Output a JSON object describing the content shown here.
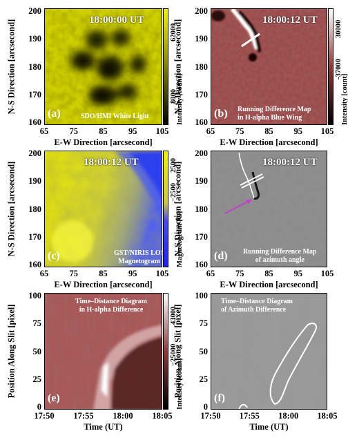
{
  "panels": {
    "a": {
      "letter": "(a)",
      "time": "18:00:00 UT",
      "caption": [
        "SDO/HMI White Light"
      ],
      "colorbar": {
        "max": "62000",
        "min": "8000",
        "label": "Intensity [count]",
        "colors": [
          "#f3f100",
          "#000000"
        ]
      }
    },
    "b": {
      "letter": "(b)",
      "time": "18:00:12 UT",
      "caption": [
        "Running Difference Map",
        "in H-alpha Blue Wing"
      ],
      "colorbar": {
        "max": "30000",
        "min": "-37000",
        "label": "Intensity [count]",
        "colors": [
          "#ffffff",
          "#8c3a3a",
          "#000000"
        ]
      }
    },
    "c": {
      "letter": "(c)",
      "time": "18:00:12 UT",
      "caption": [
        "GST/NIRIS LOS",
        "Magnetogram"
      ],
      "colorbar": {
        "max": "2500",
        "min": "−2500",
        "label": "Magnetogram [G]",
        "colors": [
          "#f3f100",
          "#4444ff"
        ]
      }
    },
    "d": {
      "letter": "(d)",
      "time": "18:00:12 UT",
      "caption": [
        "Running Difference Map",
        "of azimuth angle"
      ]
    },
    "e": {
      "letter": "(e)",
      "caption": [
        "Time–Distance Diagram",
        "in H-alpha Difference"
      ],
      "colorbar": {
        "max": "43000",
        "min": "−25000",
        "label": "Intensity [count]",
        "colors": [
          "#ffffff",
          "#8c3a3a",
          "#000000"
        ]
      }
    },
    "f": {
      "letter": "(f)",
      "caption": [
        "Time–Distance Diagram",
        "of Azimuth Difference"
      ]
    }
  },
  "axes": {
    "xlabel_spatial": "E-W Direction [arcsecond]",
    "ylabel_spatial": "N-S Direction [arcsecond]",
    "xlabel_time": "Time (UT)",
    "ylabel_time": "Position Along Slit [pixel]",
    "x_ticks_spatial": [
      "65",
      "75",
      "85",
      "95",
      "105"
    ],
    "y_ticks_spatial": [
      "200",
      "190",
      "180",
      "170",
      "160"
    ],
    "x_ticks_time": [
      "17:50",
      "17:55",
      "18:00",
      "18:05"
    ],
    "y_ticks_time": [
      "100",
      "75",
      "50",
      "25",
      "0"
    ]
  }
}
